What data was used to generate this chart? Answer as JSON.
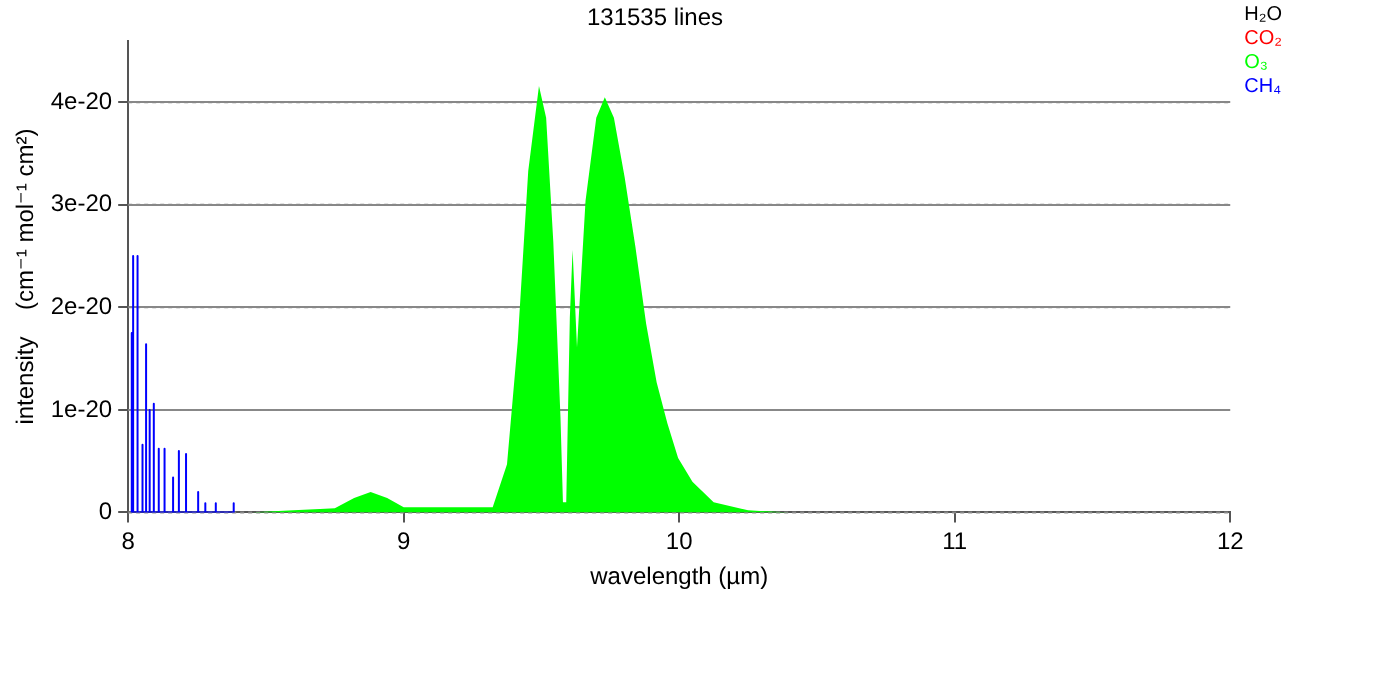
{
  "chart_data": {
    "type": "line",
    "title": "131535 lines",
    "xlabel": "wavelength (µm)",
    "ylabel": "intensity    (cm⁻¹ mol⁻¹ cm²)",
    "xlim": [
      8,
      12
    ],
    "xticks": [
      8,
      9,
      10,
      11,
      12
    ],
    "ylim": [
      0,
      4.6e-20
    ],
    "yticks": [
      0,
      1e-20,
      2e-20,
      3e-20,
      4e-20
    ],
    "grid": "y",
    "legend": "top right",
    "marker": "none",
    "series": [
      {
        "name": "H₂O",
        "color": "#000000"
      },
      {
        "name": "CO₂",
        "color": "#ff0000"
      },
      {
        "name": "O₃",
        "color": "#00ff00",
        "type": "area",
        "x": [
          8.45,
          8.6,
          8.75,
          8.82,
          8.88,
          8.94,
          9.0,
          9.1,
          9.25,
          9.323,
          9.375,
          9.414,
          9.452,
          9.491,
          9.517,
          9.543,
          9.569,
          9.578,
          9.59,
          9.603,
          9.613,
          9.629,
          9.66,
          9.699,
          9.73,
          9.763,
          9.802,
          9.841,
          9.88,
          9.918,
          9.957,
          9.996,
          10.048,
          10.125,
          10.25,
          10.4
        ],
        "values": [
          0,
          2e-22,
          4e-22,
          1.4e-21,
          2e-21,
          1.4e-21,
          5e-22,
          5e-22,
          5e-22,
          5e-22,
          4.7e-21,
          1.67e-20,
          3.33e-20,
          4.16e-20,
          3.85e-20,
          2.64e-20,
          9.3e-21,
          1e-21,
          1e-21,
          1.9e-20,
          2.56e-20,
          1.61e-20,
          3.04e-20,
          3.85e-20,
          4.05e-20,
          3.85e-20,
          3.27e-20,
          2.59e-20,
          1.84e-20,
          1.27e-20,
          8.7e-21,
          5.3e-21,
          3e-21,
          1e-21,
          2e-22,
          0
        ]
      },
      {
        "name": "CH₄",
        "color": "#0000ff",
        "x": [
          8.013,
          8.013,
          8.013,
          8.018,
          8.018,
          8.018,
          8.034,
          8.034,
          8.034,
          8.052,
          8.052,
          8.052,
          8.065,
          8.065,
          8.065,
          8.078,
          8.078,
          8.078,
          8.093,
          8.093,
          8.093,
          8.111,
          8.111,
          8.111,
          8.132,
          8.132,
          8.132,
          8.163,
          8.163,
          8.163,
          8.184,
          8.184,
          8.184,
          8.21,
          8.21,
          8.21,
          8.254,
          8.254,
          8.254,
          8.28,
          8.28,
          8.28,
          8.318,
          8.318,
          8.318,
          8.383,
          8.383,
          8.383
        ],
        "values": [
          0,
          1.75e-20,
          0,
          0,
          2.5e-20,
          0,
          0,
          2.5e-20,
          0,
          0,
          6.6e-21,
          0,
          0,
          1.64e-20,
          0,
          0,
          1e-20,
          0,
          0,
          1.06e-20,
          0,
          0,
          6.2e-21,
          0,
          0,
          6.2e-21,
          0,
          0,
          3.4e-21,
          0,
          0,
          6e-21,
          0,
          0,
          5.7e-21,
          0,
          0,
          2e-21,
          0,
          0,
          9e-22,
          0,
          0,
          9e-22,
          0,
          0,
          9e-22,
          0
        ]
      }
    ]
  }
}
